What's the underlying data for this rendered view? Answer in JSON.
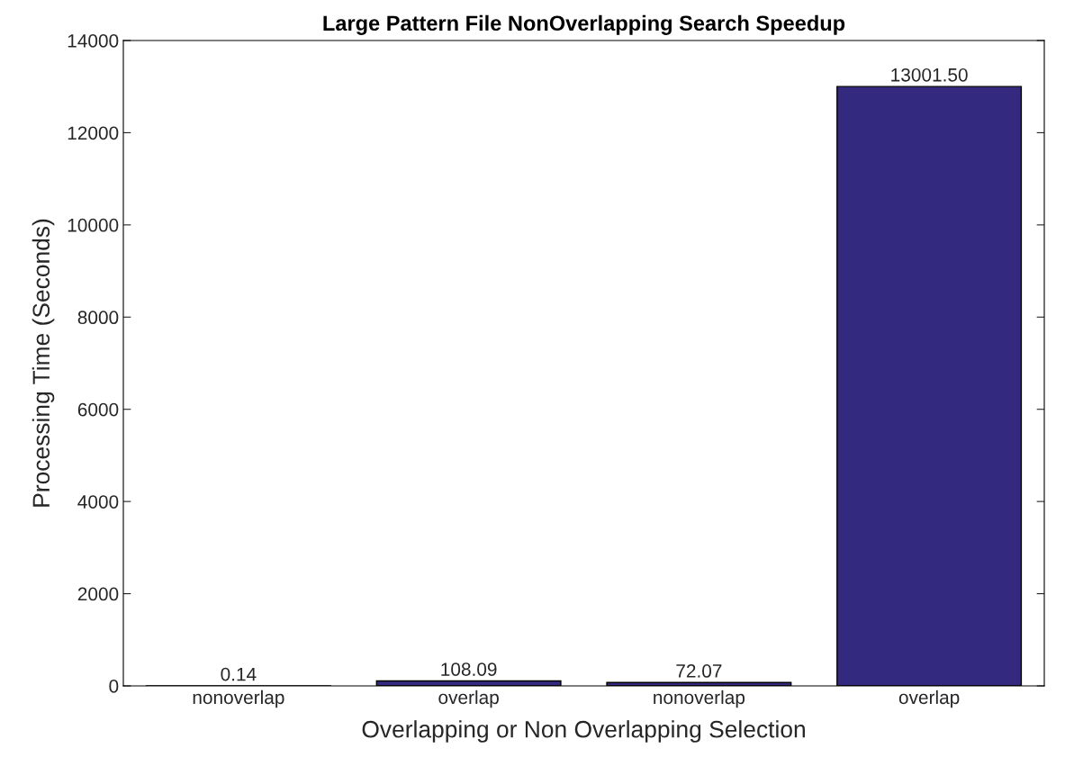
{
  "chart_data": {
    "type": "bar",
    "title": "Large Pattern File NonOverlapping Search Speedup",
    "xlabel": "Overlapping or Non Overlapping Selection",
    "ylabel": "Processing Time (Seconds)",
    "categories": [
      "nonoverlap",
      "overlap",
      "nonoverlap",
      "overlap"
    ],
    "values": [
      0.14,
      108.09,
      72.07,
      13001.5
    ],
    "value_labels": [
      "0.14",
      "108.09",
      "72.07",
      "13001.50"
    ],
    "color": "#332a80",
    "ylim": [
      0,
      14000
    ],
    "yticks": [
      0,
      2000,
      4000,
      6000,
      8000,
      10000,
      12000,
      14000
    ],
    "grid": false
  }
}
